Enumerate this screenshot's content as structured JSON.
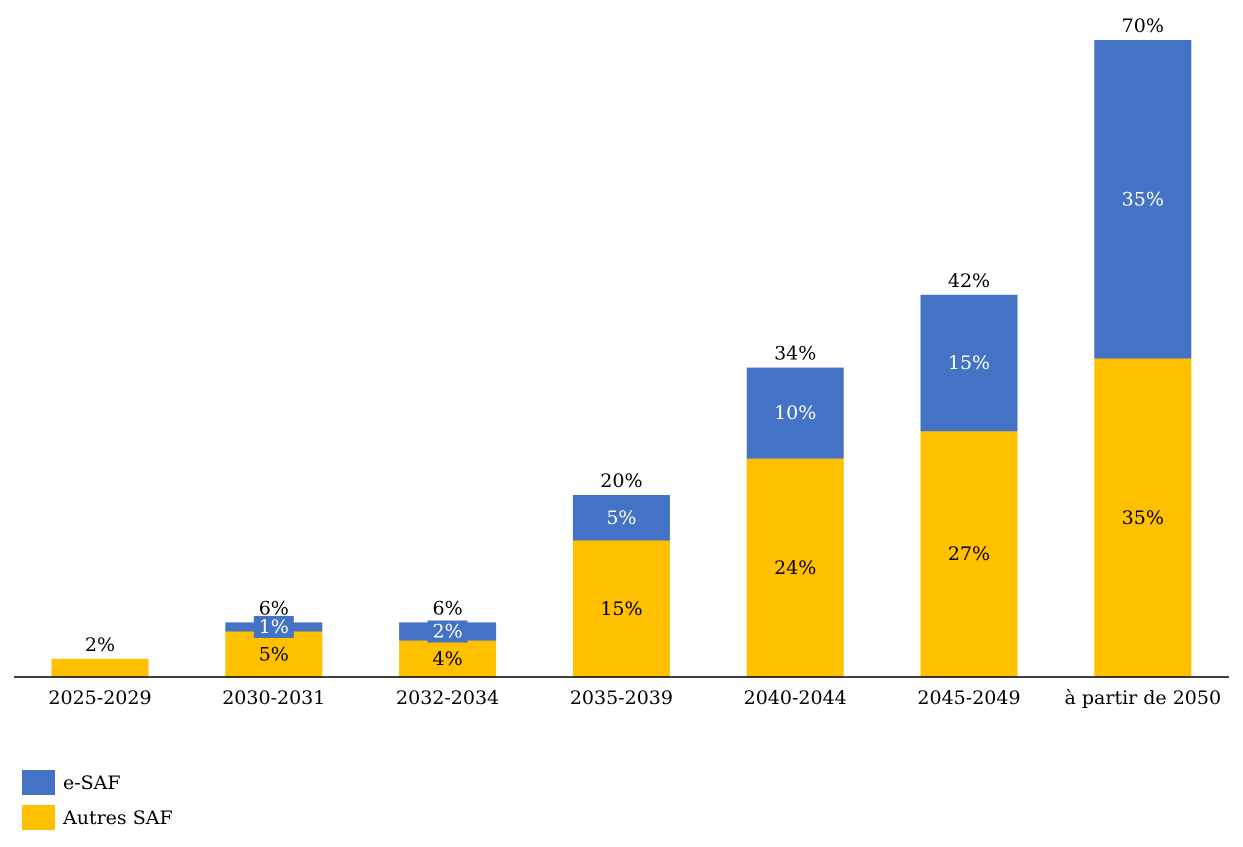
{
  "chart_data": {
    "type": "bar",
    "stacked": true,
    "title": "",
    "xlabel": "",
    "ylabel": "",
    "ylim": [
      0,
      70
    ],
    "grid": false,
    "legend_position": "bottom-left",
    "categories": [
      "2025-2029",
      "2030-2031",
      "2032-2034",
      "2035-2039",
      "2040-2044",
      "2045-2049",
      "à partir de 2050"
    ],
    "series": [
      {
        "name": "Autres SAF",
        "color": "#FFC000",
        "values": [
          2,
          5,
          4,
          15,
          24,
          27,
          35
        ],
        "labels": [
          "",
          "5%",
          "4%",
          "15%",
          "24%",
          "27%",
          "35%"
        ]
      },
      {
        "name": "e-SAF",
        "color": "#4472C4",
        "values": [
          0,
          1,
          2,
          5,
          10,
          15,
          35
        ],
        "labels": [
          "",
          "1%",
          "2%",
          "5%",
          "10%",
          "15%",
          "35%"
        ]
      }
    ],
    "totals": [
      "2%",
      "6%",
      "6%",
      "20%",
      "34%",
      "42%",
      "70%"
    ]
  },
  "legend": {
    "items": [
      {
        "label": "e-SAF",
        "color": "#4472C4"
      },
      {
        "label": "Autres SAF",
        "color": "#FFC000"
      }
    ]
  }
}
